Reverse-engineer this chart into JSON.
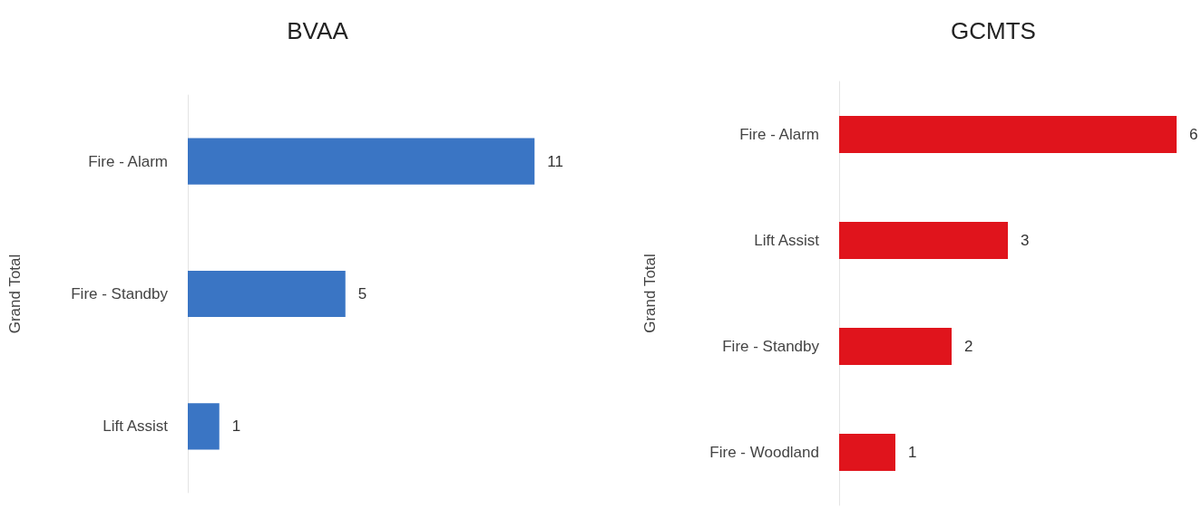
{
  "chart_data": [
    {
      "type": "bar",
      "orientation": "horizontal",
      "title": "BVAA",
      "ylabel": "Grand Total",
      "categories": [
        "Fire - Alarm",
        "Fire - Standby",
        "Lift Assist"
      ],
      "values": [
        11,
        5,
        1
      ],
      "color": "#3a75c4",
      "data_labels": true
    },
    {
      "type": "bar",
      "orientation": "horizontal",
      "title": "GCMTS",
      "ylabel": "Grand Total",
      "categories": [
        "Fire - Alarm",
        "Lift Assist",
        "Fire - Standby",
        "Fire - Woodland"
      ],
      "values": [
        6,
        3,
        2,
        1
      ],
      "color": "#e0141c",
      "data_labels": true
    }
  ]
}
